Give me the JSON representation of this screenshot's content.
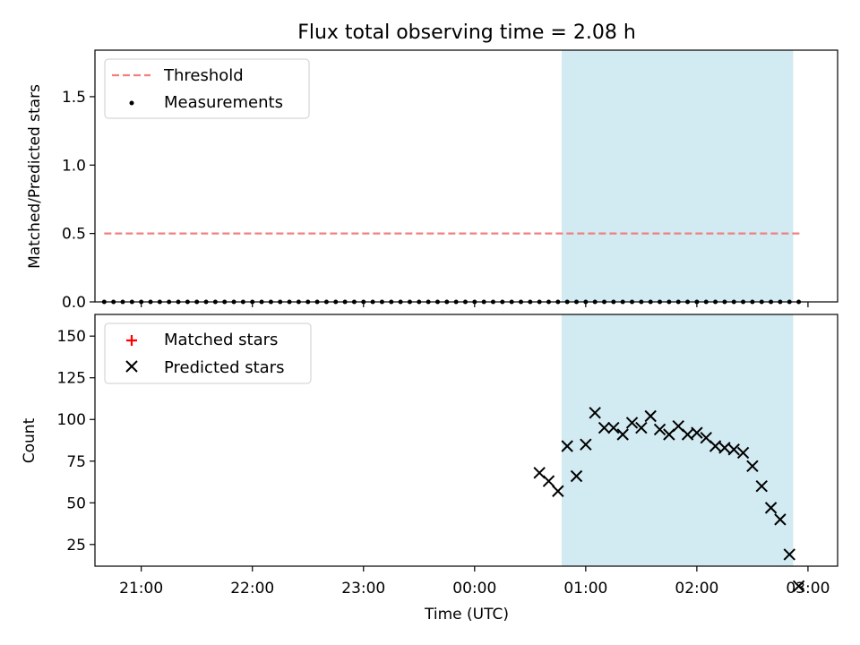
{
  "chart_data": [
    {
      "type": "scatter",
      "title": "Flux total observing time = 2.08 h",
      "ylabel": "Matched/Predicted stars",
      "xlim": [
        "20:35",
        "03:16"
      ],
      "ylim": [
        0,
        1.84
      ],
      "yticks": [
        0.0,
        0.5,
        1.0,
        1.5
      ],
      "ytick_labels": [
        "0.0",
        "0.5",
        "1.0",
        "1.5"
      ],
      "grid": false,
      "legend_position": "top-left",
      "shaded_region": {
        "start": "00:47",
        "end": "02:52",
        "color": "#add8e6"
      },
      "series": [
        {
          "name": "Threshold",
          "kind": "dashed-line",
          "color": "#f08080",
          "x": [
            "20:40",
            "02:57"
          ],
          "values": [
            0.5,
            0.5
          ]
        },
        {
          "name": "Measurements",
          "kind": "dots",
          "color": "#000000",
          "x": [
            "20:40",
            "20:45",
            "20:50",
            "20:55",
            "21:00",
            "21:05",
            "21:10",
            "21:15",
            "21:20",
            "21:25",
            "21:30",
            "21:35",
            "21:40",
            "21:45",
            "21:50",
            "21:55",
            "22:00",
            "22:05",
            "22:10",
            "22:15",
            "22:20",
            "22:25",
            "22:30",
            "22:35",
            "22:40",
            "22:45",
            "22:50",
            "22:55",
            "23:00",
            "23:05",
            "23:10",
            "23:15",
            "23:20",
            "23:25",
            "23:30",
            "23:35",
            "23:40",
            "23:45",
            "23:50",
            "23:55",
            "00:00",
            "00:05",
            "00:10",
            "00:15",
            "00:20",
            "00:25",
            "00:30",
            "00:35",
            "00:40",
            "00:45",
            "00:50",
            "00:55",
            "01:00",
            "01:05",
            "01:10",
            "01:15",
            "01:20",
            "01:25",
            "01:30",
            "01:35",
            "01:40",
            "01:45",
            "01:50",
            "01:55",
            "02:00",
            "02:05",
            "02:10",
            "02:15",
            "02:20",
            "02:25",
            "02:30",
            "02:35",
            "02:40",
            "02:45",
            "02:50",
            "02:55"
          ],
          "values": [
            0,
            0,
            0,
            0,
            0,
            0,
            0,
            0,
            0,
            0,
            0,
            0,
            0,
            0,
            0,
            0,
            0,
            0,
            0,
            0,
            0,
            0,
            0,
            0,
            0,
            0,
            0,
            0,
            0,
            0,
            0,
            0,
            0,
            0,
            0,
            0,
            0,
            0,
            0,
            0,
            0,
            0,
            0,
            0,
            0,
            0,
            0,
            0,
            0,
            0,
            0,
            0,
            0,
            0,
            0,
            0,
            0,
            0,
            0,
            0,
            0,
            0,
            0,
            0,
            0,
            0,
            0,
            0,
            0,
            0,
            0,
            0,
            0,
            0,
            0,
            0
          ]
        }
      ]
    },
    {
      "type": "scatter",
      "xlabel": "Time (UTC)",
      "ylabel": "Count",
      "xlim": [
        "20:35",
        "03:16"
      ],
      "ylim": [
        12,
        163
      ],
      "yticks": [
        25,
        50,
        75,
        100,
        125,
        150
      ],
      "ytick_labels": [
        "25",
        "50",
        "75",
        "100",
        "125",
        "150"
      ],
      "xticks": [
        "21:00",
        "22:00",
        "23:00",
        "00:00",
        "01:00",
        "02:00",
        "03:00"
      ],
      "xtick_labels": [
        "21:00",
        "22:00",
        "23:00",
        "00:00",
        "01:00",
        "02:00",
        "03:00"
      ],
      "grid": false,
      "legend_position": "top-left",
      "shaded_region": {
        "start": "00:47",
        "end": "02:52",
        "color": "#add8e6"
      },
      "series": [
        {
          "name": "Matched stars",
          "kind": "plus",
          "color": "#ff0000",
          "x": [],
          "values": []
        },
        {
          "name": "Predicted stars",
          "kind": "x",
          "color": "#000000",
          "x": [
            "00:35",
            "00:40",
            "00:45",
            "00:50",
            "00:55",
            "01:00",
            "01:05",
            "01:10",
            "01:15",
            "01:20",
            "01:25",
            "01:30",
            "01:35",
            "01:40",
            "01:45",
            "01:50",
            "01:55",
            "02:00",
            "02:05",
            "02:10",
            "02:15",
            "02:20",
            "02:25",
            "02:30",
            "02:35",
            "02:40",
            "02:45",
            "02:50",
            "02:55"
          ],
          "values": [
            68,
            63,
            57,
            84,
            66,
            85,
            104,
            95,
            95,
            91,
            98,
            95,
            102,
            94,
            91,
            96,
            91,
            92,
            89,
            84,
            83,
            82,
            80,
            72,
            60,
            47,
            40,
            19,
            0
          ]
        }
      ]
    }
  ]
}
